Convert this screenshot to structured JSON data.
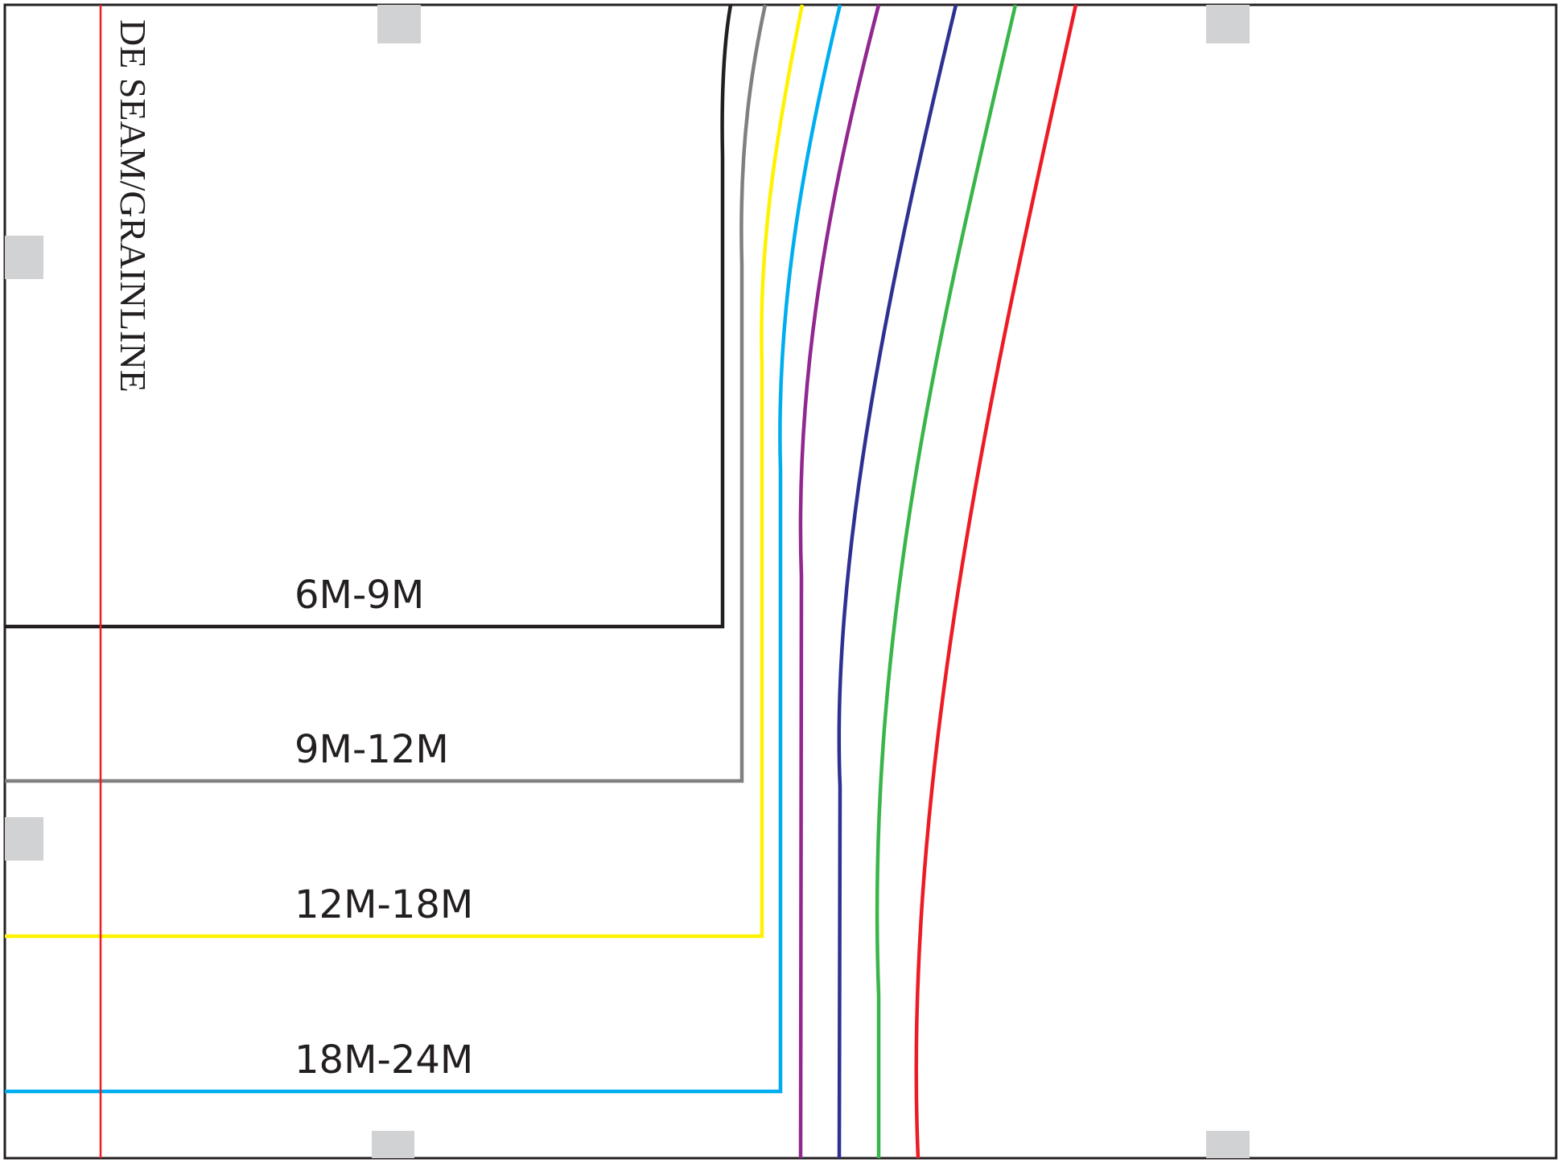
{
  "pattern": {
    "grainline_label": "DE SEAM/GRAINLINE",
    "sizes": [
      {
        "label": "6M-9M",
        "color": "#231f20"
      },
      {
        "label": "9M-12M",
        "color": "#808080"
      },
      {
        "label": "12M-18M",
        "color": "#fff200"
      },
      {
        "label": "18M-24M",
        "color": "#00aeef"
      },
      {
        "color": "#92278f"
      },
      {
        "color": "#2e3192"
      },
      {
        "color": "#39b54a"
      },
      {
        "color": "#ed1c24"
      }
    ],
    "grainline_color": "#ed1c24",
    "border_color": "#231f20",
    "registration_mark_color": "#d1d2d4"
  }
}
